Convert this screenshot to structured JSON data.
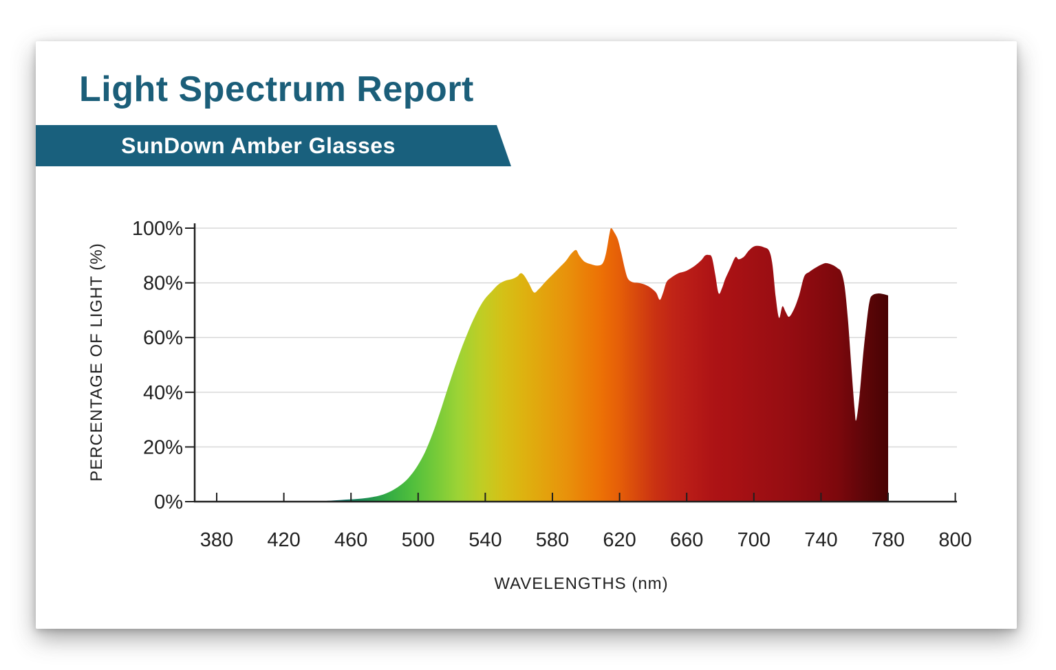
{
  "page": {
    "title": "Light Spectrum Report",
    "subtitle_banner": "SunDown Amber Glasses"
  },
  "colors": {
    "title_text": "#1b5e79",
    "banner_background": "#19607d",
    "banner_text": "#ffffff",
    "axis_line": "#1f1f1f",
    "gridline": "#d8d8d8",
    "tick_label": "#1f1f1f"
  },
  "chart_data": {
    "type": "area",
    "title": "Light Spectrum Report",
    "subtitle": "SunDown Amber Glasses",
    "xlabel": "WAVELENGTHS (nm)",
    "ylabel": "PERCENTAGE OF LIGHT (%)",
    "x_tick_labels": [
      "380",
      "420",
      "460",
      "500",
      "540",
      "580",
      "620",
      "660",
      "700",
      "740",
      "780",
      "800"
    ],
    "y_tick_labels": [
      "100%",
      "80%",
      "60%",
      "40%",
      "20%",
      "0%"
    ],
    "xlim": [
      380,
      800
    ],
    "ylim": [
      0,
      100
    ],
    "grid": "horizontal-only",
    "legend": "none",
    "series": [
      {
        "name": "percentage of light transmitted",
        "points": [
          [
            440,
            0
          ],
          [
            444,
            0.2
          ],
          [
            449,
            0.4
          ],
          [
            454,
            0.6
          ],
          [
            459,
            0.8
          ],
          [
            464,
            1.0
          ],
          [
            469,
            1.3
          ],
          [
            474,
            1.8
          ],
          [
            479,
            2.6
          ],
          [
            484,
            3.9
          ],
          [
            489,
            5.8
          ],
          [
            494,
            8.5
          ],
          [
            499,
            12.5
          ],
          [
            504,
            18
          ],
          [
            509,
            25.5
          ],
          [
            514,
            34.5
          ],
          [
            519,
            44
          ],
          [
            524,
            53
          ],
          [
            529,
            61
          ],
          [
            534,
            68
          ],
          [
            539,
            73.5
          ],
          [
            544,
            77
          ],
          [
            548,
            79.5
          ],
          [
            552,
            80.8
          ],
          [
            556,
            81.4
          ],
          [
            559,
            82.3
          ],
          [
            561,
            83.5
          ],
          [
            563,
            82.8
          ],
          [
            566,
            79.8
          ],
          [
            569,
            76.5
          ],
          [
            572,
            77.8
          ],
          [
            576,
            80.5
          ],
          [
            580,
            83
          ],
          [
            584,
            85.5
          ],
          [
            588,
            88
          ],
          [
            591,
            90.5
          ],
          [
            594,
            92
          ],
          [
            596,
            90
          ],
          [
            599,
            87.8
          ],
          [
            603,
            86.8
          ],
          [
            607,
            86.3
          ],
          [
            610,
            87.2
          ],
          [
            612,
            91
          ],
          [
            614,
            98
          ],
          [
            615,
            100
          ],
          [
            617,
            98.3
          ],
          [
            619,
            95.8
          ],
          [
            621,
            91
          ],
          [
            623,
            85.5
          ],
          [
            625,
            81.5
          ],
          [
            628,
            80.2
          ],
          [
            631,
            80
          ],
          [
            634,
            79.6
          ],
          [
            637,
            78.8
          ],
          [
            640,
            77.5
          ],
          [
            642,
            76.2
          ],
          [
            644,
            73.8
          ],
          [
            646,
            76.5
          ],
          [
            648,
            80.3
          ],
          [
            651,
            82
          ],
          [
            655,
            83.5
          ],
          [
            659,
            84.2
          ],
          [
            663,
            85.5
          ],
          [
            666,
            86.8
          ],
          [
            669,
            88.5
          ],
          [
            671,
            90
          ],
          [
            673,
            90.2
          ],
          [
            675,
            89.3
          ],
          [
            677,
            83
          ],
          [
            679,
            76.2
          ],
          [
            681,
            78
          ],
          [
            683,
            81.5
          ],
          [
            686,
            85.5
          ],
          [
            689,
            89.4
          ],
          [
            691,
            88.6
          ],
          [
            694,
            89.5
          ],
          [
            697,
            91.8
          ],
          [
            700,
            93.3
          ],
          [
            703,
            93.5
          ],
          [
            706,
            93
          ],
          [
            709,
            91.8
          ],
          [
            711,
            87
          ],
          [
            713,
            75
          ],
          [
            715,
            67.2
          ],
          [
            717,
            71.4
          ],
          [
            719,
            69.3
          ],
          [
            721,
            67.6
          ],
          [
            724,
            70.5
          ],
          [
            727,
            75.5
          ],
          [
            730,
            82.3
          ],
          [
            733,
            84
          ],
          [
            737,
            85.6
          ],
          [
            740,
            86.6
          ],
          [
            743,
            87.2
          ],
          [
            747,
            86.5
          ],
          [
            750,
            85.3
          ],
          [
            752,
            84
          ],
          [
            754,
            79
          ],
          [
            756,
            67
          ],
          [
            758,
            50
          ],
          [
            760,
            34
          ],
          [
            761,
            29.8
          ],
          [
            763,
            39
          ],
          [
            765,
            53
          ],
          [
            767,
            64.5
          ],
          [
            769,
            73.5
          ],
          [
            771,
            75.6
          ],
          [
            774,
            76.1
          ],
          [
            777,
            75.9
          ],
          [
            780,
            75.4
          ]
        ]
      }
    ],
    "spectrum_gradient": [
      {
        "nm": 445,
        "color": "#0e646e"
      },
      {
        "nm": 458,
        "color": "#127663"
      },
      {
        "nm": 470,
        "color": "#1f9150"
      },
      {
        "nm": 483,
        "color": "#35ad43"
      },
      {
        "nm": 496,
        "color": "#4fbe3d"
      },
      {
        "nm": 510,
        "color": "#74ca39"
      },
      {
        "nm": 524,
        "color": "#9dd335"
      },
      {
        "nm": 538,
        "color": "#c0cd24"
      },
      {
        "nm": 550,
        "color": "#d4c117"
      },
      {
        "nm": 562,
        "color": "#ddb310"
      },
      {
        "nm": 575,
        "color": "#e3a30d"
      },
      {
        "nm": 588,
        "color": "#e8920b"
      },
      {
        "nm": 600,
        "color": "#eb7f07"
      },
      {
        "nm": 610,
        "color": "#ec6f05"
      },
      {
        "nm": 620,
        "color": "#e55e08"
      },
      {
        "nm": 630,
        "color": "#d8490d"
      },
      {
        "nm": 641,
        "color": "#ca3212"
      },
      {
        "nm": 652,
        "color": "#c02417"
      },
      {
        "nm": 663,
        "color": "#b81b17"
      },
      {
        "nm": 676,
        "color": "#ad1315"
      },
      {
        "nm": 690,
        "color": "#a71114"
      },
      {
        "nm": 705,
        "color": "#9e0f13"
      },
      {
        "nm": 720,
        "color": "#960d12"
      },
      {
        "nm": 735,
        "color": "#8a0a0f"
      },
      {
        "nm": 750,
        "color": "#7c080c"
      },
      {
        "nm": 762,
        "color": "#65060a"
      },
      {
        "nm": 771,
        "color": "#560506"
      },
      {
        "nm": 780,
        "color": "#480304"
      }
    ]
  }
}
